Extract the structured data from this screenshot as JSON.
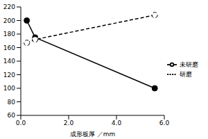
{
  "chart_data": {
    "type": "line",
    "x_label": "成形板厚 ／mm",
    "x": [
      0.25,
      0.6,
      5.6
    ],
    "series": [
      {
        "name": "未研磨",
        "color": "#000000",
        "marker": "circle",
        "line_style": "solid",
        "values": [
          200,
          175,
          100
        ]
      },
      {
        "name": "研磨",
        "color": "#000000",
        "marker": "open_circle",
        "line_style": "dashed",
        "values": [
          167,
          172,
          208
        ]
      }
    ],
    "xlim": [
      0,
      6
    ],
    "xticks": [
      {
        "value": 0,
        "label": "0.0"
      },
      {
        "value": 2,
        "label": "2.0"
      },
      {
        "value": 4,
        "label": "4.0"
      },
      {
        "value": 6,
        "label": "6.0"
      }
    ],
    "ylim": [
      60,
      220
    ],
    "yticks": [
      60,
      80,
      100,
      120,
      140,
      160,
      180,
      200,
      220
    ],
    "grid": false,
    "legend": "right"
  }
}
